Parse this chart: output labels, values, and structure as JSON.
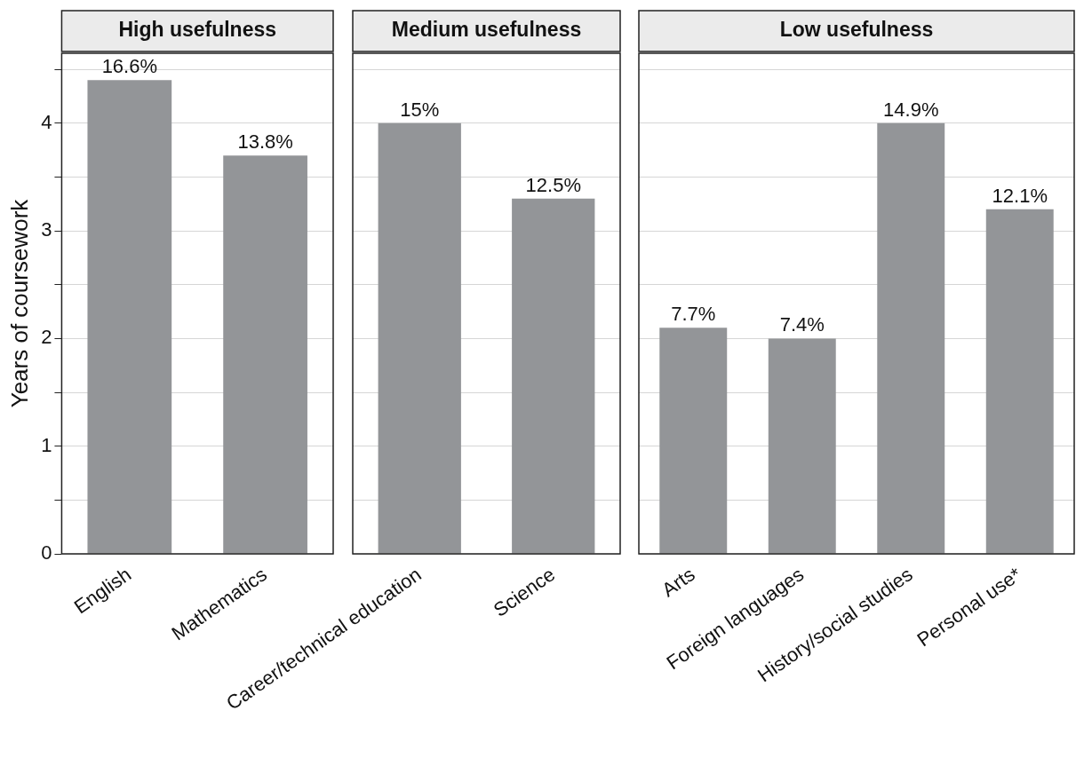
{
  "chart_data": [
    {
      "type": "bar",
      "title": "High usefulness",
      "ylabel": "Years of coursework",
      "categories": [
        "English",
        "Mathematics"
      ],
      "values": [
        4.4,
        3.7
      ],
      "color": "#939598",
      "ylim": [
        0,
        4.65
      ],
      "yticks": [
        0,
        {
          "value": 0.5,
          "label": null
        },
        1,
        {
          "value": 1.5,
          "label": null
        },
        2,
        {
          "value": 2.5,
          "label": null
        },
        3,
        {
          "value": 3.5,
          "label": null
        },
        4,
        {
          "value": 4.5,
          "label": null
        }
      ],
      "grid": "y",
      "legend": false,
      "annotations": [
        {
          "text": "16.6%",
          "x": "English",
          "y": 4.4
        },
        {
          "text": "13.8%",
          "x": "Mathematics",
          "y": 3.7
        }
      ]
    },
    {
      "type": "bar",
      "title": "Medium usefulness",
      "categories": [
        "Career/technical education",
        "Science"
      ],
      "values": [
        4.0,
        3.3
      ],
      "color": "#939598",
      "ylim": [
        0,
        4.65
      ],
      "yticks": [
        0,
        {
          "value": 0.5,
          "label": null
        },
        1,
        {
          "value": 1.5,
          "label": null
        },
        2,
        {
          "value": 2.5,
          "label": null
        },
        3,
        {
          "value": 3.5,
          "label": null
        },
        4,
        {
          "value": 4.5,
          "label": null
        }
      ],
      "grid": "y",
      "legend": false,
      "tick_labels": "x",
      "annotations": [
        {
          "text": "15%",
          "x": "Career/technical education",
          "y": 4.0
        },
        {
          "text": "12.5%",
          "x": "Science",
          "y": 3.3
        }
      ]
    },
    {
      "type": "bar",
      "title": "Low usefulness",
      "categories": [
        "Arts",
        "Foreign languages",
        "History/social studies",
        "Personal use*"
      ],
      "values": [
        2.1,
        2.0,
        4.0,
        3.2
      ],
      "color": "#939598",
      "ylim": [
        0,
        4.65
      ],
      "yticks": [
        0,
        {
          "value": 0.5,
          "label": null
        },
        1,
        {
          "value": 1.5,
          "label": null
        },
        2,
        {
          "value": 2.5,
          "label": null
        },
        3,
        {
          "value": 3.5,
          "label": null
        },
        4,
        {
          "value": 4.5,
          "label": null
        }
      ],
      "grid": "y",
      "legend": false,
      "tick_labels": "x",
      "annotations": [
        {
          "text": "7.7%",
          "x": "Arts",
          "y": 2.1
        },
        {
          "text": "7.4%",
          "x": "Foreign languages",
          "y": 2.0
        },
        {
          "text": "14.9%",
          "x": "History/social studies",
          "y": 4.0
        },
        {
          "text": "12.1%",
          "x": "Personal use*",
          "y": 3.2
        }
      ]
    }
  ]
}
